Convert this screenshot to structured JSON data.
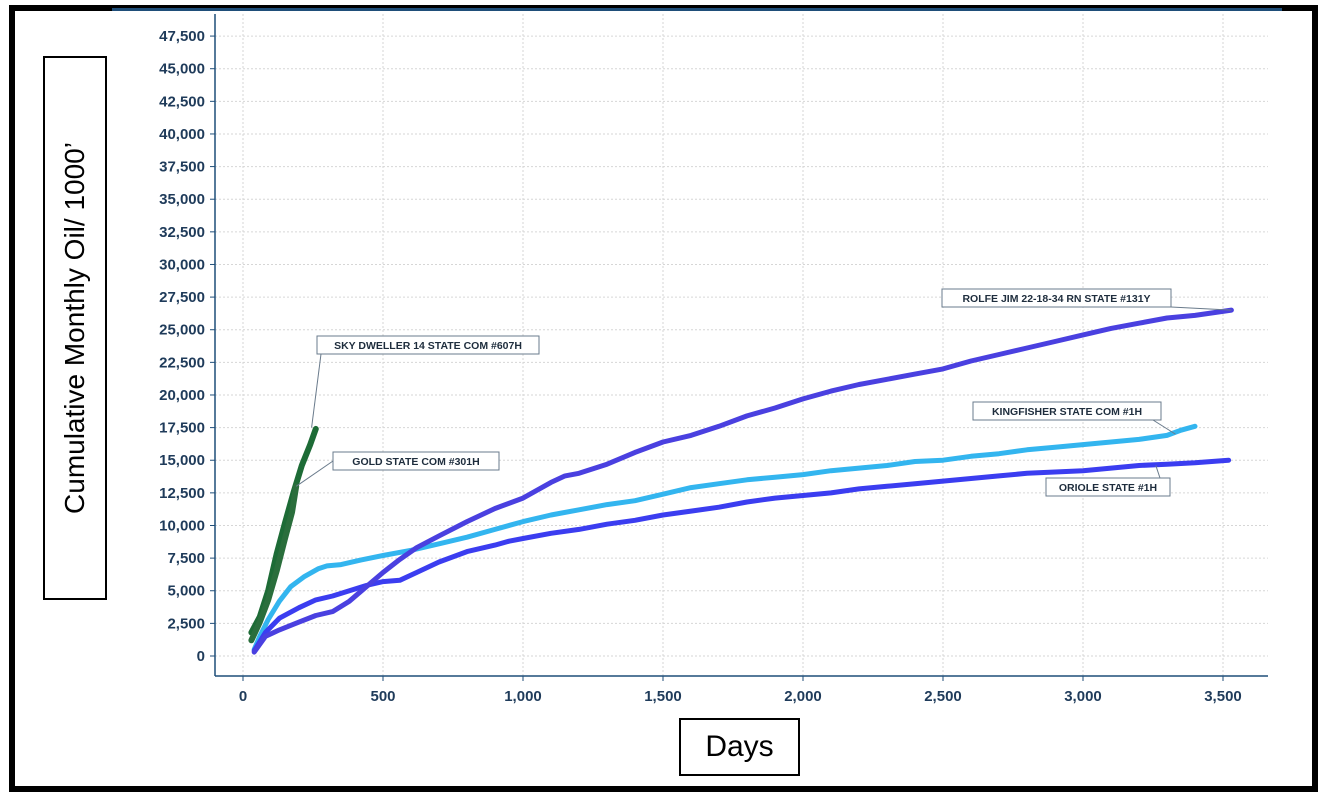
{
  "chart_data": {
    "type": "line",
    "title": "",
    "xlabel": "Days",
    "ylabel": "Cumulative Monthly Oil/ 1000’",
    "xlim": [
      -100,
      3650
    ],
    "ylim": [
      -1200,
      48600
    ],
    "x_ticks": [
      0,
      500,
      1000,
      1500,
      2000,
      2500,
      3000,
      3500
    ],
    "x_tick_labels": [
      "0",
      "500",
      "1,000",
      "1,500",
      "2,000",
      "2,500",
      "3,000",
      "3,500"
    ],
    "y_ticks": [
      0,
      2500,
      5000,
      7500,
      10000,
      12500,
      15000,
      17500,
      20000,
      22500,
      25000,
      27500,
      30000,
      32500,
      35000,
      37500,
      40000,
      42500,
      45000,
      47500
    ],
    "y_tick_labels": [
      "0",
      "2,500",
      "5,000",
      "7,500",
      "10,000",
      "12,500",
      "15,000",
      "17,500",
      "20,000",
      "22,500",
      "25,000",
      "27,500",
      "30,000",
      "32,500",
      "35,000",
      "37,500",
      "40,000",
      "42,500",
      "45,000",
      "47,500"
    ],
    "grid": true,
    "series": [
      {
        "name": "KINGFISHER STATE COM #1H",
        "color": "#33b5ef",
        "points": [
          [
            40,
            500
          ],
          [
            60,
            1500
          ],
          [
            90,
            2800
          ],
          [
            130,
            4200
          ],
          [
            170,
            5300
          ],
          [
            220,
            6100
          ],
          [
            270,
            6700
          ],
          [
            300,
            6900
          ],
          [
            350,
            7000
          ],
          [
            420,
            7350
          ],
          [
            500,
            7700
          ],
          [
            600,
            8100
          ],
          [
            700,
            8600
          ],
          [
            800,
            9100
          ],
          [
            900,
            9700
          ],
          [
            1000,
            10300
          ],
          [
            1100,
            10800
          ],
          [
            1200,
            11200
          ],
          [
            1300,
            11600
          ],
          [
            1400,
            11900
          ],
          [
            1500,
            12400
          ],
          [
            1600,
            12900
          ],
          [
            1700,
            13200
          ],
          [
            1800,
            13500
          ],
          [
            1900,
            13700
          ],
          [
            2000,
            13900
          ],
          [
            2100,
            14200
          ],
          [
            2200,
            14400
          ],
          [
            2300,
            14600
          ],
          [
            2400,
            14900
          ],
          [
            2500,
            15000
          ],
          [
            2600,
            15300
          ],
          [
            2700,
            15500
          ],
          [
            2800,
            15800
          ],
          [
            2900,
            16000
          ],
          [
            3000,
            16200
          ],
          [
            3100,
            16400
          ],
          [
            3200,
            16600
          ],
          [
            3300,
            16900
          ],
          [
            3350,
            17300
          ],
          [
            3400,
            17600
          ]
        ]
      },
      {
        "name": "ROLFE JIM 22-18-34 RN STATE #131Y",
        "color": "#3b3df0",
        "points": [
          [
            40,
            400
          ],
          [
            80,
            1800
          ],
          [
            130,
            2900
          ],
          [
            200,
            3700
          ],
          [
            260,
            4300
          ],
          [
            320,
            4600
          ],
          [
            380,
            5000
          ],
          [
            440,
            5400
          ],
          [
            500,
            5700
          ],
          [
            560,
            5800
          ],
          [
            620,
            6400
          ],
          [
            700,
            7200
          ],
          [
            800,
            8000
          ],
          [
            900,
            8500
          ],
          [
            950,
            8800
          ],
          [
            1000,
            9000
          ],
          [
            1100,
            9400
          ],
          [
            1200,
            9700
          ],
          [
            1300,
            10100
          ],
          [
            1400,
            10400
          ],
          [
            1500,
            10800
          ],
          [
            1600,
            11100
          ],
          [
            1700,
            11400
          ],
          [
            1800,
            11800
          ],
          [
            1900,
            12100
          ],
          [
            2000,
            12300
          ],
          [
            2100,
            12500
          ],
          [
            2200,
            12800
          ],
          [
            2300,
            13000
          ],
          [
            2400,
            13200
          ],
          [
            2500,
            13400
          ],
          [
            2600,
            13600
          ],
          [
            2700,
            13800
          ],
          [
            2800,
            14000
          ],
          [
            2900,
            14100
          ],
          [
            3000,
            14200
          ],
          [
            3100,
            14400
          ],
          [
            3200,
            14600
          ],
          [
            3300,
            14700
          ],
          [
            3400,
            14800
          ],
          [
            3520,
            15000
          ]
        ]
      },
      {
        "name": "ORIOLE STATE #1H",
        "color": "#4a40e0",
        "points": [
          [
            40,
            300
          ],
          [
            80,
            1500
          ],
          [
            130,
            2000
          ],
          [
            200,
            2600
          ],
          [
            260,
            3100
          ],
          [
            320,
            3400
          ],
          [
            380,
            4200
          ],
          [
            440,
            5300
          ],
          [
            500,
            6400
          ],
          [
            560,
            7400
          ],
          [
            620,
            8300
          ],
          [
            700,
            9200
          ],
          [
            800,
            10300
          ],
          [
            900,
            11300
          ],
          [
            1000,
            12100
          ],
          [
            1100,
            13300
          ],
          [
            1150,
            13800
          ],
          [
            1200,
            14000
          ],
          [
            1300,
            14700
          ],
          [
            1400,
            15600
          ],
          [
            1500,
            16400
          ],
          [
            1600,
            16900
          ],
          [
            1700,
            17600
          ],
          [
            1800,
            18400
          ],
          [
            1900,
            19000
          ],
          [
            2000,
            19700
          ],
          [
            2100,
            20300
          ],
          [
            2200,
            20800
          ],
          [
            2300,
            21200
          ],
          [
            2400,
            21600
          ],
          [
            2500,
            22000
          ],
          [
            2600,
            22600
          ],
          [
            2700,
            23100
          ],
          [
            2800,
            23600
          ],
          [
            2900,
            24100
          ],
          [
            3000,
            24600
          ],
          [
            3100,
            25100
          ],
          [
            3200,
            25500
          ],
          [
            3300,
            25900
          ],
          [
            3400,
            26100
          ],
          [
            3530,
            26500
          ]
        ]
      },
      {
        "name": "GOLD STATE COM #301H",
        "color": "#1d6b36",
        "points": [
          [
            30,
            1800
          ],
          [
            60,
            3000
          ],
          [
            90,
            5000
          ],
          [
            120,
            7800
          ],
          [
            150,
            10200
          ],
          [
            180,
            12500
          ],
          [
            210,
            14600
          ],
          [
            240,
            16200
          ],
          [
            260,
            17400
          ]
        ]
      },
      {
        "name": "SKY DWELLER 14 STATE COM #607H",
        "color": "#2a6e3c",
        "points": [
          [
            30,
            1200
          ],
          [
            60,
            2600
          ],
          [
            90,
            4300
          ],
          [
            120,
            6500
          ],
          [
            150,
            9000
          ],
          [
            175,
            11000
          ],
          [
            190,
            13000
          ]
        ]
      }
    ],
    "annotations": [
      {
        "text": "SKY DWELLER 14 STATE COM #607H",
        "x": 245,
        "y": 17500
      },
      {
        "text": "GOLD STATE COM #301H",
        "x": 190,
        "y": 13000
      },
      {
        "text": "ROLFE JIM 22-18-34 RN STATE #131Y",
        "x": 3530,
        "y": 26500
      },
      {
        "text": "KINGFISHER STATE COM #1H",
        "x": 3330,
        "y": 17000
      },
      {
        "text": "ORIOLE STATE #1H",
        "x": 3260,
        "y": 14600
      }
    ]
  }
}
